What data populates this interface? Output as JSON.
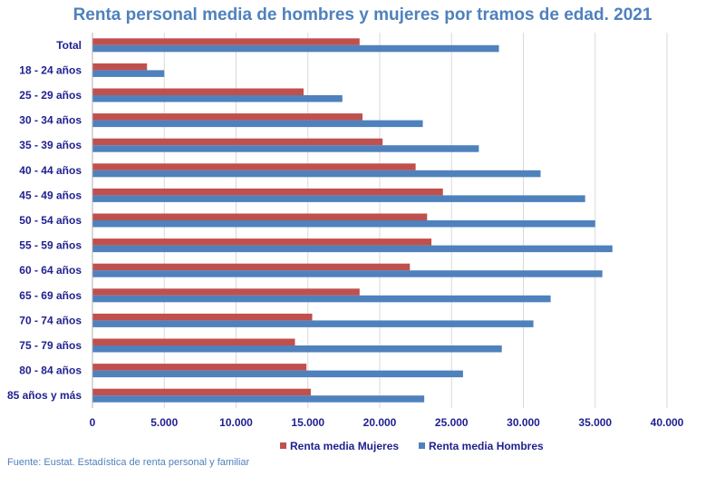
{
  "chart_data": {
    "type": "bar",
    "orientation": "horizontal",
    "title": "Renta personal media de hombres y mujeres por tramos de edad. 2021",
    "categories": [
      "Total",
      "18 - 24 años",
      "25 - 29 años",
      "30 - 34 años",
      "35 - 39 años",
      "40 - 44 años",
      "45 - 49 años",
      "50 - 54 años",
      "55 - 59 años",
      "60 - 64 años",
      "65 - 69 años",
      "70 - 74 años",
      "75 - 79 años",
      "80 - 84 años",
      "85 años y más"
    ],
    "series": [
      {
        "name": "Renta media Mujeres",
        "color": "#c0504d",
        "values": [
          18600,
          3800,
          14700,
          18800,
          20200,
          22500,
          24400,
          23300,
          23600,
          22100,
          18600,
          15300,
          14100,
          14900,
          15200
        ]
      },
      {
        "name": "Renta media Hombres",
        "color": "#4f81bd",
        "values": [
          28300,
          5000,
          17400,
          23000,
          26900,
          31200,
          34300,
          35000,
          36200,
          35500,
          31900,
          30700,
          28500,
          25800,
          23100
        ]
      }
    ],
    "xlim": [
      0,
      40000
    ],
    "ticks": [
      "0",
      "5.000",
      "10.000",
      "15.000",
      "20.000",
      "25.000",
      "30.000",
      "35.000",
      "40.000"
    ],
    "grid": true,
    "legend_position": "bottom",
    "source": "Fuente: Eustat. Estadística de renta personal y familiar"
  }
}
